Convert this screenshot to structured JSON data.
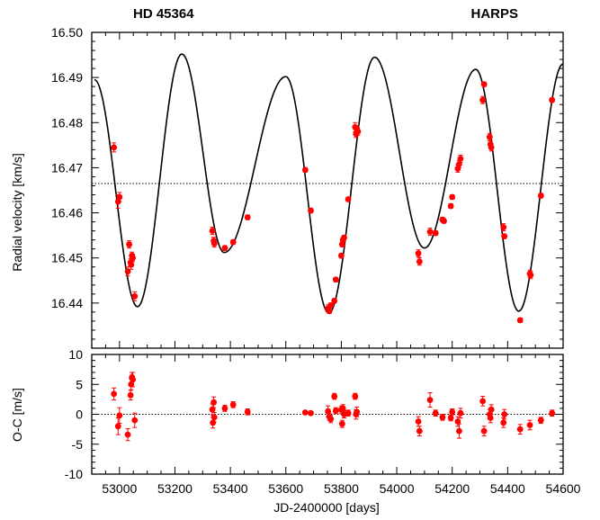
{
  "chart_data": [
    {
      "type": "scatter",
      "panel": "top",
      "title_left": "HD 45364",
      "title_right": "HARPS",
      "ylabel": "Radial velocity [km/s]",
      "xlabel": "",
      "xlim": [
        52900,
        54600
      ],
      "ylim": [
        16.43,
        16.5
      ],
      "yticks": [
        16.44,
        16.45,
        16.46,
        16.47,
        16.48,
        16.49,
        16.5
      ],
      "ytick_labels": [
        "16.44",
        "16.45",
        "16.46",
        "16.47",
        "16.48",
        "16.49",
        "16.50"
      ],
      "marker_color": "#ff0000",
      "reference_line": {
        "y": 16.4665,
        "style": "dotted"
      },
      "model_curve": {
        "style": "solid black",
        "maxima": [
          [
            52910,
            16.4895
          ],
          [
            53225,
            16.4952
          ],
          [
            53600,
            16.4902
          ],
          [
            53920,
            16.4945
          ],
          [
            54285,
            16.4918
          ],
          [
            54600,
            16.493
          ]
        ],
        "minima": [
          [
            53065,
            16.4392
          ],
          [
            53378,
            16.4512
          ],
          [
            53755,
            16.4378
          ],
          [
            54100,
            16.4522
          ],
          [
            54440,
            16.4382
          ]
        ]
      },
      "series": [
        {
          "x": [
            52980,
            52995,
            53000,
            53030,
            53035,
            53040,
            53042,
            53045,
            53048,
            53055,
            53335,
            53340,
            53342,
            53380,
            53410,
            53462,
            53670,
            53690,
            53752,
            53757,
            53762,
            53775,
            53780,
            53800,
            53803,
            53806,
            53810,
            53825,
            53850,
            53853,
            53856,
            53860,
            54078,
            54082,
            54120,
            54140,
            54165,
            54170,
            54195,
            54200,
            54220,
            54225,
            54230,
            54310,
            54315,
            54335,
            54338,
            54341,
            54385,
            54388,
            54445,
            54480,
            54483,
            54520,
            54560
          ],
          "y": [
            16.4745,
            16.4625,
            16.4635,
            16.447,
            16.453,
            16.449,
            16.4485,
            16.4505,
            16.45,
            16.4415,
            16.456,
            16.4538,
            16.4532,
            16.4522,
            16.4535,
            16.459,
            16.4695,
            16.4605,
            16.4388,
            16.4382,
            16.4395,
            16.4405,
            16.4452,
            16.4505,
            16.453,
            16.454,
            16.4545,
            16.463,
            16.479,
            16.4775,
            16.4785,
            16.478,
            16.451,
            16.4492,
            16.4558,
            16.4555,
            16.4585,
            16.4582,
            16.4615,
            16.4635,
            16.4698,
            16.4708,
            16.472,
            16.485,
            16.4885,
            16.4768,
            16.4752,
            16.4745,
            16.4568,
            16.4548,
            16.4362,
            16.4465,
            16.4462,
            16.4638,
            16.485
          ],
          "yerr": [
            0.001,
            0.0015,
            0.001,
            0.001,
            0.0008,
            0.0008,
            0.001,
            0.0008,
            0.0008,
            0.001,
            0.0008,
            0.0008,
            0.0008,
            0.0005,
            0.0005,
            0.0005,
            0.0005,
            0.0005,
            0.0008,
            0.0005,
            0.0005,
            0.0005,
            0.0005,
            0.0005,
            0.0005,
            0.0005,
            0.0005,
            0.0005,
            0.001,
            0.0008,
            0.0008,
            0.0008,
            0.0008,
            0.0008,
            0.0008,
            0.0005,
            0.0005,
            0.0005,
            0.0005,
            0.0005,
            0.0008,
            0.0008,
            0.0008,
            0.0008,
            0.0005,
            0.0008,
            0.0008,
            0.0008,
            0.0008,
            0.0005,
            0.0005,
            0.0008,
            0.0008,
            0.0005,
            0.0005
          ]
        }
      ]
    },
    {
      "type": "scatter",
      "panel": "bottom",
      "ylabel": "O-C [m/s]",
      "xlabel": "JD-2400000 [days]",
      "xlim": [
        52900,
        54600
      ],
      "ylim": [
        -10,
        10
      ],
      "yticks": [
        -10,
        -5,
        0,
        5,
        10
      ],
      "ytick_labels": [
        "-10",
        "-5",
        "0",
        "5",
        "10"
      ],
      "xticks": [
        53000,
        53200,
        53400,
        53600,
        53800,
        54000,
        54200,
        54400,
        54600
      ],
      "xtick_labels": [
        "53000",
        "53200",
        "53400",
        "53600",
        "53800",
        "54000",
        "54200",
        "54400",
        "54600"
      ],
      "marker_color": "#ff0000",
      "reference_line": {
        "y": 0,
        "style": "dotted"
      },
      "series": [
        {
          "x": [
            52980,
            52995,
            53000,
            53030,
            53040,
            53042,
            53045,
            53048,
            53055,
            53335,
            53337,
            53340,
            53342,
            53380,
            53410,
            53462,
            53670,
            53690,
            53752,
            53757,
            53762,
            53775,
            53780,
            53800,
            53803,
            53806,
            53810,
            53825,
            53850,
            53853,
            53856,
            54078,
            54082,
            54120,
            54140,
            54165,
            54195,
            54200,
            54220,
            54225,
            54230,
            54310,
            54315,
            54335,
            54338,
            54341,
            54385,
            54388,
            54445,
            54480,
            54520,
            54560
          ],
          "y": [
            3.4,
            -2.0,
            -0.2,
            -3.4,
            3.2,
            5.0,
            6.2,
            5.8,
            -1.0,
            0.8,
            -1.4,
            2.0,
            -0.5,
            1.0,
            1.6,
            0.4,
            0.3,
            0.2,
            0.5,
            -0.4,
            -0.8,
            3.0,
            0.6,
            0.8,
            -1.6,
            1.0,
            0.0,
            0.2,
            3.0,
            0.0,
            0.4,
            -1.2,
            -2.8,
            2.4,
            0.2,
            -0.5,
            -0.6,
            0.4,
            -1.2,
            -2.8,
            0.2,
            2.2,
            -2.8,
            0.0,
            -0.6,
            0.8,
            -1.4,
            0.0,
            -2.5,
            -1.8,
            -1.0,
            0.2
          ],
          "yerr": [
            1.0,
            1.4,
            1.3,
            1.0,
            0.8,
            0.9,
            0.8,
            1.2,
            1.2,
            0.9,
            0.9,
            0.9,
            0.8,
            0.5,
            0.5,
            0.5,
            0.3,
            0.3,
            0.9,
            0.6,
            0.6,
            0.5,
            0.5,
            0.6,
            0.6,
            0.6,
            0.6,
            0.5,
            0.5,
            0.8,
            0.8,
            0.8,
            0.8,
            1.2,
            0.5,
            0.5,
            0.5,
            0.5,
            0.8,
            1.2,
            0.8,
            0.8,
            0.8,
            0.8,
            0.8,
            0.8,
            0.8,
            0.8,
            0.8,
            0.8,
            0.5,
            0.5
          ]
        }
      ]
    }
  ]
}
